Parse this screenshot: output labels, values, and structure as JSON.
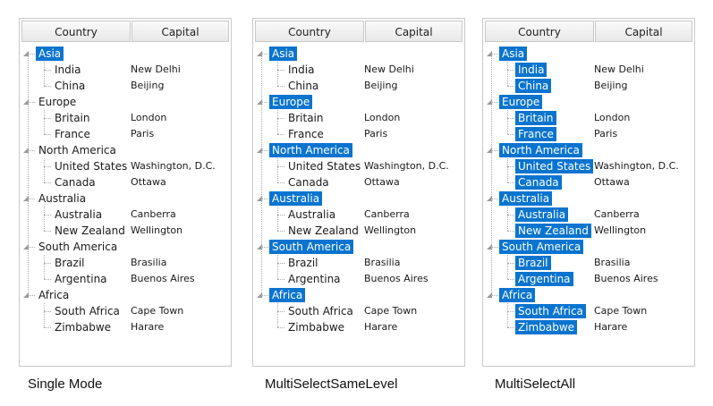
{
  "columns": [
    "Country",
    "Capital"
  ],
  "tree": [
    {
      "label": "Asia",
      "children": [
        {
          "label": "India",
          "capital": "New Delhi"
        },
        {
          "label": "China",
          "capital": "Beijing"
        }
      ]
    },
    {
      "label": "Europe",
      "children": [
        {
          "label": "Britain",
          "capital": "London"
        },
        {
          "label": "France",
          "capital": "Paris"
        }
      ]
    },
    {
      "label": "North America",
      "children": [
        {
          "label": "United States",
          "capital": "Washington, D.C."
        },
        {
          "label": "Canada",
          "capital": "Ottawa"
        }
      ]
    },
    {
      "label": "Australia",
      "children": [
        {
          "label": "Australia",
          "capital": "Canberra"
        },
        {
          "label": "New Zealand",
          "capital": "Wellington"
        }
      ]
    },
    {
      "label": "South America",
      "children": [
        {
          "label": "Brazil",
          "capital": "Brasilia"
        },
        {
          "label": "Argentina",
          "capital": "Buenos Aires"
        }
      ]
    },
    {
      "label": "Africa",
      "children": [
        {
          "label": "South Africa",
          "capital": "Cape Town"
        },
        {
          "label": "Zimbabwe",
          "capital": "Harare"
        }
      ]
    }
  ],
  "panels": [
    {
      "caption": "Single Mode",
      "selection": "first-only"
    },
    {
      "caption": "MultiSelectSameLevel",
      "selection": "all-continents"
    },
    {
      "caption": "MultiSelectAll",
      "selection": "all-nodes"
    }
  ],
  "colors": {
    "selection": "#0a74cf",
    "selection_text": "#ffffff",
    "border": "#c9c9c9"
  }
}
